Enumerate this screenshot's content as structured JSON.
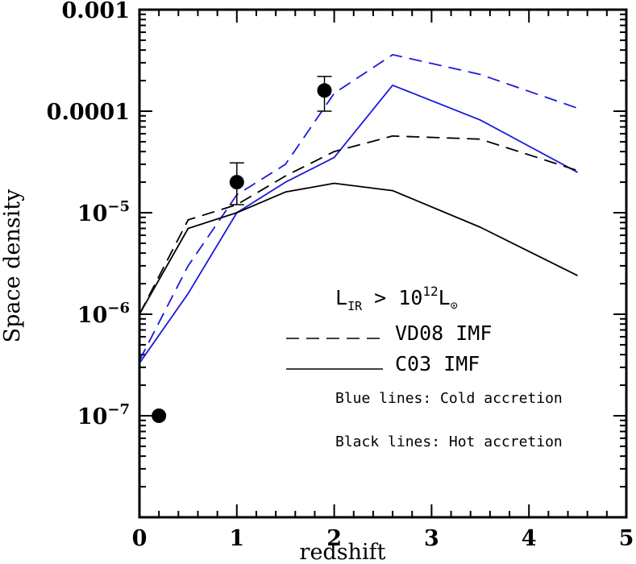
{
  "chart_data": {
    "type": "line",
    "xlabel": "redshift",
    "ylabel": "Space density",
    "xlim": [
      0,
      5
    ],
    "ylim": [
      1e-08,
      0.001
    ],
    "yscale": "log",
    "x_ticks": [
      "0",
      "1",
      "2",
      "3",
      "4",
      "5"
    ],
    "y_ticks": [
      {
        "value": 0.001,
        "base": "0.001",
        "exp": ""
      },
      {
        "value": 0.0001,
        "base": "0.0001",
        "exp": ""
      },
      {
        "value": 1e-05,
        "base": "10",
        "exp": "−5"
      },
      {
        "value": 1e-06,
        "base": "10",
        "exp": "−6"
      },
      {
        "value": 1e-07,
        "base": "10",
        "exp": "−7"
      }
    ],
    "series": [
      {
        "color": "#1a1adc",
        "dash": "dashed",
        "x": [
          0,
          0.5,
          1.0,
          1.5,
          2.0,
          2.6,
          3.5,
          4.5
        ],
        "y": [
          3.5e-07,
          3e-06,
          1.5e-05,
          3e-05,
          0.00015,
          0.00036,
          0.00023,
          0.000107
        ]
      },
      {
        "color": "#1a1adc",
        "dash": "solid",
        "x": [
          0,
          0.5,
          1.0,
          1.5,
          2.0,
          2.6,
          3.5,
          4.5
        ],
        "y": [
          3.3e-07,
          1.6e-06,
          1e-05,
          2e-05,
          3.5e-05,
          0.00018,
          8.2e-05,
          2.5e-05
        ]
      },
      {
        "color": "#000000",
        "dash": "dashed",
        "x": [
          0,
          0.5,
          1.0,
          1.5,
          2.0,
          2.6,
          3.5,
          4.5
        ],
        "y": [
          1e-06,
          8.5e-06,
          1.2e-05,
          2.3e-05,
          4e-05,
          5.7e-05,
          5.3e-05,
          2.6e-05
        ]
      },
      {
        "color": "#000000",
        "dash": "solid",
        "x": [
          0,
          0.5,
          1.0,
          1.5,
          2.0,
          2.6,
          3.5,
          4.5
        ],
        "y": [
          1e-06,
          7e-06,
          1e-05,
          1.6e-05,
          1.95e-05,
          1.65e-05,
          7.2e-06,
          2.4e-06
        ]
      }
    ],
    "points": [
      {
        "x": 0.2,
        "y": 1e-07
      },
      {
        "x": 1.0,
        "y": 2e-05,
        "err_low": 1.2e-05,
        "err_high": 3.1e-05
      },
      {
        "x": 1.9,
        "y": 0.00016,
        "err_low": 0.0001,
        "err_high": 0.00022
      }
    ],
    "legend": {
      "title": {
        "main": "L",
        "sub": "IR",
        "mid": " > 10",
        "sup": "12",
        "tail": "L",
        "sun": "⊙"
      },
      "entries": [
        {
          "label": "VD08 IMF",
          "dash": "dashed"
        },
        {
          "label": "C03 IMF",
          "dash": "solid"
        }
      ],
      "notes": [
        "Blue lines: Cold accretion",
        "Black lines: Hot accretion"
      ],
      "placement": "lower-right"
    }
  }
}
